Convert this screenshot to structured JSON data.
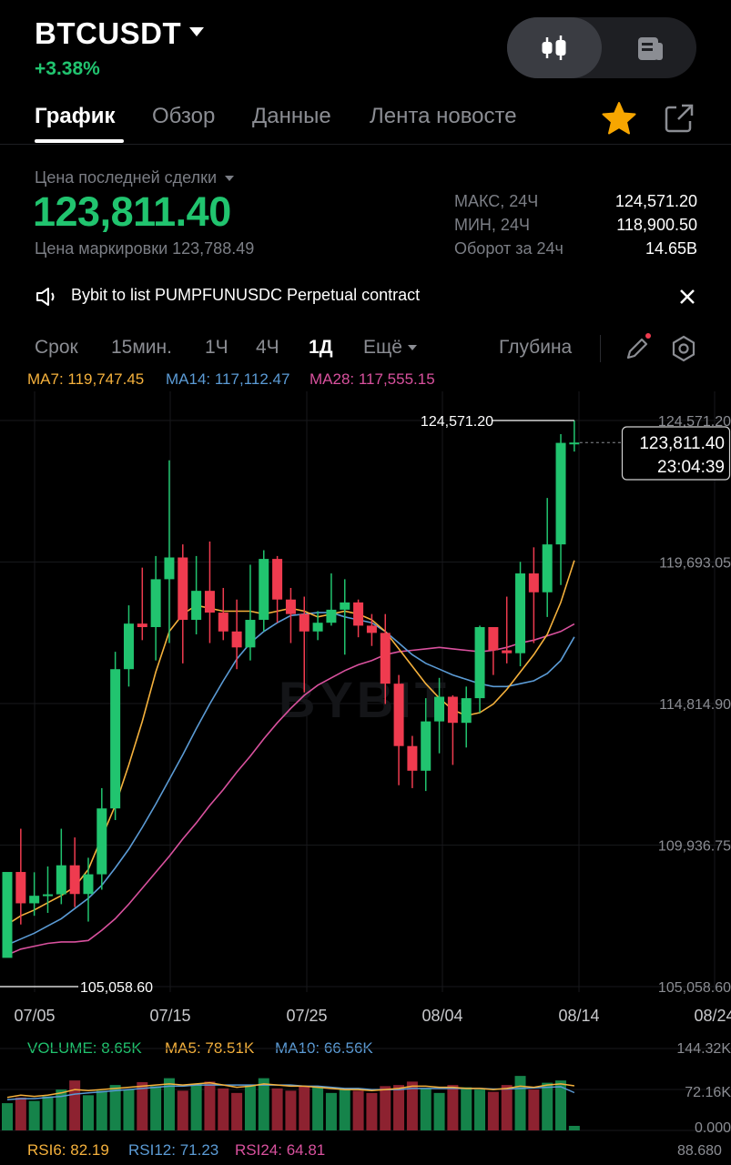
{
  "header": {
    "symbol": "BTCUSDT",
    "change": "+3.38%"
  },
  "tabs": [
    {
      "label": "График",
      "active": true
    },
    {
      "label": "Обзор"
    },
    {
      "label": "Данные"
    },
    {
      "label": "Лента новосте"
    }
  ],
  "icons": {
    "favorite": "star-icon",
    "share": "share-icon",
    "chart_mode": "candlestick-icon",
    "info_mode": "document-icon",
    "notice": "speaker-icon",
    "close": "close-icon",
    "draw": "pencil-icon",
    "settings": "hexagon-settings-icon"
  },
  "colors": {
    "up": "#21c46f",
    "down": "#ef3b4f",
    "accent_star": "#f7a600",
    "ma7": "#f5b13c",
    "ma14": "#5b9bd5",
    "ma28": "#d9519e"
  },
  "price": {
    "last_label": "Цена последней сделки",
    "last_value": "123,811.40",
    "mark_label": "Цена маркировки",
    "mark_value": "123,788.49"
  },
  "stats": [
    {
      "label": "МАКС, 24Ч",
      "value": "124,571.20"
    },
    {
      "label": "МИН, 24Ч",
      "value": "118,900.50"
    },
    {
      "label": "Оборот за 24ч",
      "value": "14.65B"
    }
  ],
  "notice": {
    "text": "Bybit to list PUMPFUNUSDC Perpetual contract"
  },
  "timeframes": [
    {
      "label": "Срок"
    },
    {
      "label": "15мин."
    },
    {
      "label": "1Ч"
    },
    {
      "label": "4Ч"
    },
    {
      "label": "1Д",
      "active": true
    },
    {
      "label": "Ещё"
    }
  ],
  "depth_label": "Глубина",
  "ma_legend": [
    {
      "text": "MA7: 119,747.45"
    },
    {
      "text": "MA14: 117,112.47"
    },
    {
      "text": "MA28: 117,555.15"
    }
  ],
  "watermark": "BYBIT",
  "chart_data": {
    "type": "candlestick",
    "y_ticks": [
      "124,571.20",
      "119,693.05",
      "114,814.90",
      "109,936.75",
      "105,058.60"
    ],
    "x_ticks": [
      "07/05",
      "07/15",
      "07/25",
      "08/04",
      "08/14",
      "08/24"
    ],
    "ylim": [
      105058.6,
      124571.2
    ],
    "annotations": {
      "high_marker": "124,571.20",
      "low_marker": "105,058.60",
      "current_price": "123,811.40",
      "countdown": "23:04:39"
    },
    "candles": [
      [
        106050,
        109010,
        106990,
        106750
      ],
      [
        109010,
        107930,
        110500,
        107200
      ],
      [
        107930,
        108190,
        109000,
        107500
      ],
      [
        108190,
        108240,
        109200,
        107600
      ],
      [
        108240,
        109240,
        110500,
        107900
      ],
      [
        109240,
        108250,
        110200,
        107800
      ],
      [
        108250,
        108930,
        109500,
        107300
      ],
      [
        108930,
        111200,
        111900,
        108400
      ],
      [
        111200,
        116000,
        116600,
        110800
      ],
      [
        116000,
        117570,
        118200,
        115400
      ],
      [
        117570,
        117450,
        119500,
        117000
      ],
      [
        117450,
        119100,
        119900,
        116300
      ],
      [
        119100,
        119850,
        123200,
        116900
      ],
      [
        119850,
        117700,
        120300,
        116200
      ],
      [
        117700,
        118700,
        119900,
        117200
      ],
      [
        118700,
        117950,
        120400,
        116900
      ],
      [
        117950,
        117300,
        118800,
        117000
      ],
      [
        117300,
        116750,
        118400,
        116000
      ],
      [
        116750,
        117700,
        119600,
        116300
      ],
      [
        117700,
        119800,
        120100,
        117300
      ],
      [
        119800,
        118400,
        119900,
        117600
      ],
      [
        118400,
        117900,
        118800,
        116900
      ],
      [
        117900,
        117300,
        118500,
        115200
      ],
      [
        117300,
        117600,
        118000,
        117000
      ],
      [
        117600,
        118050,
        119300,
        117500
      ],
      [
        118050,
        118300,
        119100,
        116500
      ],
      [
        118300,
        117500,
        118400,
        117100
      ],
      [
        117500,
        117250,
        117900,
        116800
      ],
      [
        117250,
        115500,
        117900,
        114800
      ],
      [
        115500,
        113350,
        115800,
        112000
      ],
      [
        113350,
        112500,
        113700,
        111900
      ],
      [
        112500,
        114200,
        115000,
        111800
      ],
      [
        114200,
        115050,
        115700,
        113100
      ],
      [
        115050,
        114150,
        115100,
        112700
      ],
      [
        114150,
        115000,
        115400,
        113300
      ],
      [
        115000,
        117450,
        117500,
        114500
      ],
      [
        117450,
        116650,
        117450,
        115800
      ],
      [
        116650,
        116550,
        118500,
        116200
      ],
      [
        116550,
        119300,
        119700,
        116100
      ],
      [
        119300,
        118650,
        120200,
        116900
      ],
      [
        118650,
        120300,
        121900,
        117800
      ],
      [
        120300,
        123800,
        124100,
        118900
      ],
      [
        123800,
        123811.4,
        124571.2,
        123500
      ]
    ],
    "ma7": [
      107200,
      107500,
      107700,
      107950,
      108200,
      108500,
      109100,
      110200,
      111300,
      112700,
      114200,
      115900,
      117300,
      117900,
      118200,
      118100,
      118000,
      118000,
      118000,
      117900,
      118000,
      118100,
      118000,
      117800,
      117900,
      118000,
      117900,
      117700,
      117300,
      116700,
      116100,
      115500,
      115000,
      114600,
      114400,
      114500,
      114800,
      115300,
      115900,
      116500,
      117200,
      118300,
      119747.45
    ],
    "ma14": [
      106500,
      106700,
      106900,
      107150,
      107400,
      107750,
      108100,
      108550,
      109150,
      109800,
      110550,
      111350,
      112200,
      113050,
      113950,
      114800,
      115600,
      116350,
      116900,
      117300,
      117600,
      117850,
      117900,
      117950,
      117950,
      117800,
      117700,
      117600,
      117300,
      116900,
      116500,
      116200,
      116000,
      115800,
      115650,
      115500,
      115400,
      115400,
      115500,
      115600,
      115850,
      116300,
      117112.47
    ],
    "ma28": [
      106150,
      106350,
      106450,
      106550,
      106600,
      106600,
      106650,
      107000,
      107400,
      107900,
      108450,
      109000,
      109550,
      110150,
      110700,
      111300,
      111850,
      112450,
      113000,
      113600,
      114150,
      114650,
      115100,
      115450,
      115700,
      115950,
      116150,
      116300,
      116500,
      116600,
      116650,
      116700,
      116750,
      116700,
      116650,
      116600,
      116650,
      116750,
      116900,
      117000,
      117150,
      117300,
      117555.15
    ]
  },
  "volume": {
    "legend": [
      {
        "text": "VOLUME: 8.65K"
      },
      {
        "text": "MA5: 78.51K"
      },
      {
        "text": "MA10: 66.56K"
      }
    ],
    "y_ticks": [
      "144.32K",
      "72.16K",
      "0.000"
    ],
    "max": 144320,
    "values": [
      48,
      58,
      52,
      60,
      72,
      88,
      62,
      70,
      80,
      72,
      85,
      78,
      92,
      70,
      82,
      86,
      74,
      66,
      80,
      92,
      74,
      70,
      78,
      76,
      66,
      74,
      70,
      66,
      78,
      80,
      86,
      74,
      66,
      80,
      76,
      72,
      68,
      80,
      96,
      72,
      84,
      88,
      8
    ],
    "ma5": [
      58,
      62,
      60,
      62,
      66,
      72,
      70,
      72,
      74,
      76,
      78,
      80,
      82,
      80,
      82,
      84,
      80,
      76,
      78,
      82,
      80,
      78,
      78,
      76,
      74,
      72,
      72,
      70,
      72,
      74,
      78,
      78,
      76,
      76,
      74,
      74,
      72,
      74,
      78,
      76,
      80,
      82,
      78.51
    ],
    "ma10": [
      54,
      56,
      56,
      58,
      60,
      64,
      66,
      68,
      70,
      72,
      74,
      76,
      78,
      78,
      80,
      80,
      80,
      80,
      80,
      80,
      80,
      80,
      78,
      78,
      76,
      74,
      74,
      72,
      72,
      72,
      74,
      74,
      74,
      74,
      74,
      74,
      73,
      73,
      74,
      75,
      76,
      77,
      66.56
    ]
  },
  "rsi": {
    "legend": [
      {
        "text": "RSI6: 82.19"
      },
      {
        "text": "RSI12: 71.23"
      },
      {
        "text": "RSI24: 64.81"
      }
    ],
    "y_tick": "88.680"
  }
}
